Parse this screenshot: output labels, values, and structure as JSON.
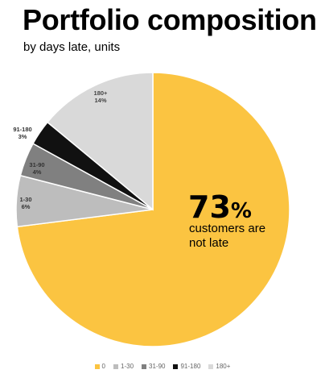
{
  "header": {
    "title": "Portfolio composition",
    "subtitle": "by days late, units"
  },
  "chart_data": {
    "type": "pie",
    "categories": [
      "0",
      "1-30",
      "31-90",
      "91-180",
      "180+"
    ],
    "values": [
      73,
      6,
      4,
      3,
      14
    ],
    "value_labels": [
      "73%",
      "6%",
      "4%",
      "3%",
      "14%"
    ],
    "colors": [
      "#FBC441",
      "#BDBDBD",
      "#808080",
      "#111111",
      "#D9D9D9"
    ],
    "annotation": {
      "value": "73",
      "unit": "%",
      "line1": "customers are",
      "line2": "not late"
    },
    "legend_position": "bottom"
  }
}
